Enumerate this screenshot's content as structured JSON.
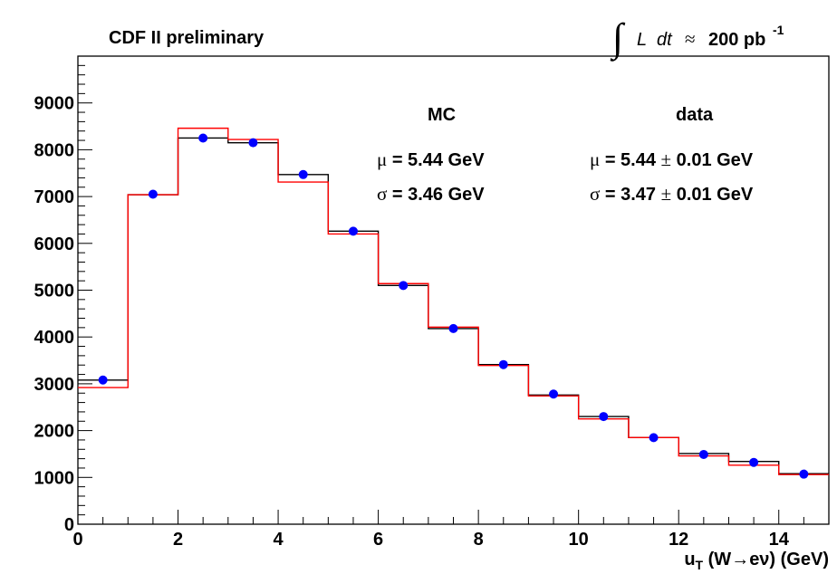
{
  "header": {
    "title": "CDF II preliminary",
    "lumi_integral": "∫",
    "lumi_L": "L",
    "lumi_dt": "dt",
    "lumi_approx": "≈",
    "lumi_value": "200 pb",
    "lumi_exp": "-1"
  },
  "stats": {
    "mc_heading": "MC",
    "data_heading": "data",
    "mu_symbol": "μ",
    "sigma_symbol": "σ",
    "mc_mu": " = 5.44 GeV",
    "mc_sigma": " = 3.46 GeV",
    "data_mu_val": " = 5.44 ",
    "data_mu_pm": "±",
    "data_mu_err": " 0.01 GeV",
    "data_sigma_val": " = 3.47 ",
    "data_sigma_pm": "±",
    "data_sigma_err": " 0.01 GeV"
  },
  "xaxis": {
    "label_u": "u",
    "label_sub": "T",
    "label_rest": " (W→eν) (GeV)"
  },
  "colors": {
    "data_points": "#0000ff",
    "mc_hist": "#ff0000",
    "data_hist": "#000000"
  },
  "chart_data": {
    "type": "histogram",
    "xlim": [
      0,
      15
    ],
    "ylim": [
      0,
      10000
    ],
    "xticks": [
      0,
      2,
      4,
      6,
      8,
      10,
      12,
      14
    ],
    "yticks": [
      0,
      1000,
      2000,
      3000,
      4000,
      5000,
      6000,
      7000,
      8000,
      9000
    ],
    "bin_edges": [
      0,
      1,
      2,
      3,
      4,
      5,
      6,
      7,
      8,
      9,
      10,
      11,
      12,
      13,
      14,
      15
    ],
    "series": [
      {
        "name": "data",
        "kind": "points",
        "x": [
          0.5,
          1.5,
          2.5,
          3.5,
          4.5,
          5.5,
          6.5,
          7.5,
          8.5,
          9.5,
          10.5,
          11.5,
          12.5,
          13.5,
          14.5
        ],
        "values": [
          3080,
          7050,
          8250,
          8150,
          7470,
          6260,
          5100,
          4180,
          3410,
          2780,
          2300,
          1850,
          1490,
          1320,
          1070
        ]
      },
      {
        "name": "data",
        "kind": "step",
        "values": [
          3080,
          7040,
          8250,
          8150,
          7470,
          6260,
          5100,
          4180,
          3410,
          2760,
          2300,
          1850,
          1510,
          1340,
          1080
        ]
      },
      {
        "name": "MC",
        "kind": "step",
        "values": [
          2920,
          7040,
          8460,
          8220,
          7310,
          6200,
          5140,
          4210,
          3390,
          2740,
          2250,
          1850,
          1460,
          1260,
          1060
        ]
      }
    ]
  }
}
